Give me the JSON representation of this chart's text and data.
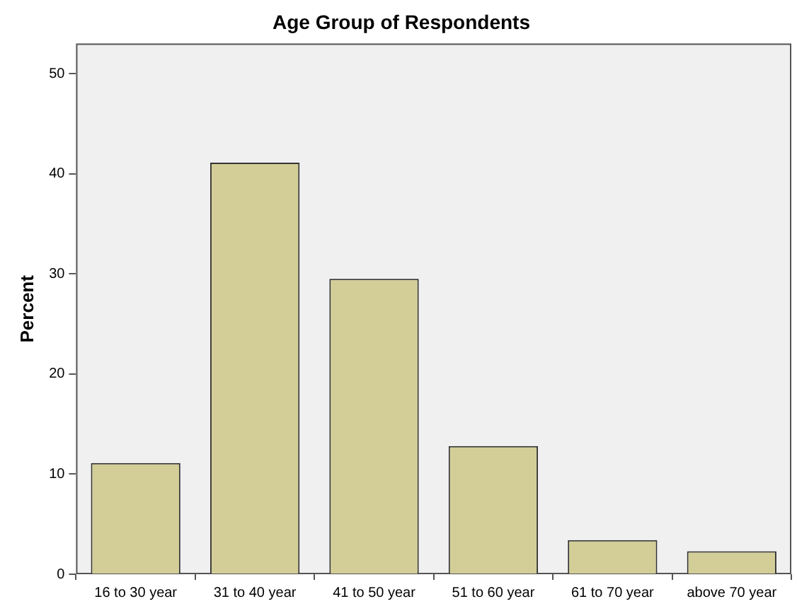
{
  "chart_data": {
    "type": "bar",
    "title": "Age Group of Respondents",
    "ylabel": "Percent",
    "categories": [
      "16 to 30 year",
      "31 to 40 year",
      "41 to 50 year",
      "51 to 60 year",
      "61 to 70 year",
      "above 70 year"
    ],
    "values": [
      11.1,
      41.1,
      29.5,
      12.8,
      3.4,
      2.3
    ],
    "color": "#d3ce97",
    "ylim": [
      0,
      53
    ],
    "yticks": [
      0,
      10,
      20,
      30,
      40,
      50
    ],
    "grid": false,
    "legend": false
  }
}
